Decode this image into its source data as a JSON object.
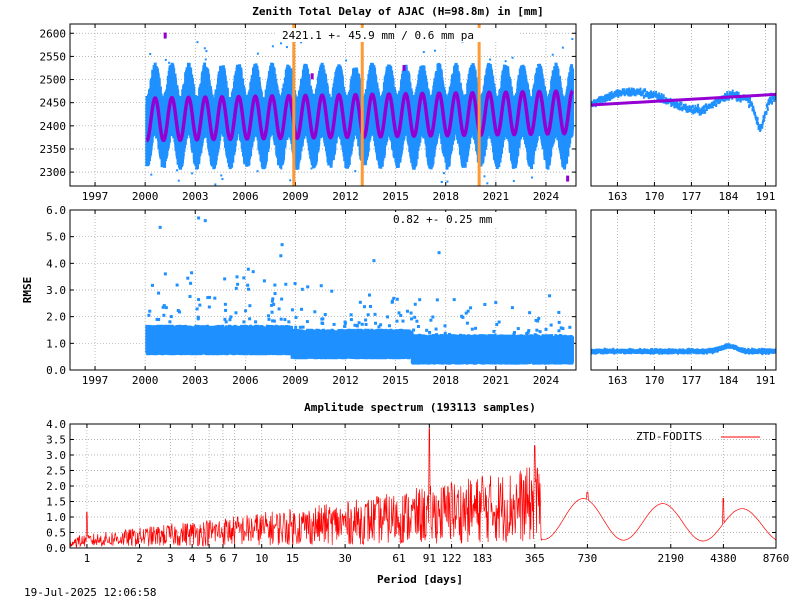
{
  "chart_data": [
    {
      "type": "scatter",
      "title": "Zenith Total Delay of AJAC (H=98.8m) in [mm]",
      "annotation": "2421.1 +-  45.9 mm /  0.6 mm pa",
      "xlim": [
        1995.5,
        2025.8
      ],
      "ylim": [
        2270,
        2620
      ],
      "xticks": [
        "1997",
        "2000",
        "2003",
        "2006",
        "2009",
        "2012",
        "2015",
        "2018",
        "2021",
        "2024"
      ],
      "xtick_values": [
        1997,
        2000,
        2003,
        2006,
        2009,
        2012,
        2015,
        2018,
        2021,
        2024
      ],
      "yticks": [
        "2300",
        "2350",
        "2400",
        "2450",
        "2500",
        "2550",
        "2600"
      ],
      "ytick_values": [
        2300,
        2350,
        2400,
        2450,
        2500,
        2550,
        2600
      ],
      "data_range": [
        2000.1,
        2025.6
      ],
      "mean": 2421.1,
      "seasonal_amplitude": 45.9,
      "trend_mm_pa": 0.6,
      "vertical_markers": [
        2008.9,
        2013.0,
        2020.0
      ],
      "series": [
        {
          "color": "#1e90ff"
        },
        {
          "color": "#9400d3"
        }
      ],
      "marker_color": "#ff9933"
    },
    {
      "type": "scatter",
      "xlim": [
        158,
        193
      ],
      "ylim": [
        2270,
        2620
      ],
      "xticks": [
        "163",
        "170",
        "177",
        "184",
        "191"
      ],
      "xtick_values": [
        163,
        170,
        177,
        184,
        191
      ],
      "series_start": 2445,
      "series_end": 2468
    },
    {
      "type": "scatter",
      "ylabel": "RMSE",
      "annotation": "0.82 +-  0.25 mm",
      "xlim": [
        1995.5,
        2025.8
      ],
      "ylim": [
        0,
        6
      ],
      "xticks": [
        "1997",
        "2000",
        "2003",
        "2006",
        "2009",
        "2012",
        "2015",
        "2018",
        "2021",
        "2024"
      ],
      "xtick_values": [
        1997,
        2000,
        2003,
        2006,
        2009,
        2012,
        2015,
        2018,
        2021,
        2024
      ],
      "yticks": [
        "0.0",
        "1.0",
        "2.0",
        "3.0",
        "4.0",
        "5.0",
        "6.0"
      ],
      "ytick_values": [
        0,
        1,
        2,
        3,
        4,
        5,
        6
      ],
      "mean": 0.82,
      "std": 0.25
    },
    {
      "type": "scatter",
      "xlim": [
        158,
        193
      ],
      "ylim": [
        0,
        6
      ],
      "xticks": [
        "163",
        "170",
        "177",
        "184",
        "191"
      ],
      "xtick_values": [
        163,
        170,
        177,
        184,
        191
      ],
      "level": 0.7
    },
    {
      "type": "line",
      "title": "Amplitude spectrum (193113 samples)",
      "xlabel": "Period [days]",
      "xscale": "log",
      "xlim": [
        0.8,
        8760
      ],
      "ylim": [
        0,
        4
      ],
      "xticks": [
        "1",
        "2",
        "3",
        "4",
        "5",
        "6",
        "7",
        "10",
        "15",
        "30",
        "61",
        "91",
        "122",
        "183",
        "365",
        "730",
        "2190",
        "4380",
        "8760"
      ],
      "xtick_values": [
        1,
        2,
        3,
        4,
        5,
        6,
        7,
        10,
        15,
        30,
        61,
        91,
        122,
        183,
        365,
        730,
        2190,
        4380,
        8760
      ],
      "yticks": [
        "0.0",
        "0.5",
        "1.0",
        "1.5",
        "2.0",
        "2.5",
        "3.0",
        "3.5",
        "4.0"
      ],
      "ytick_values": [
        0,
        0.5,
        1,
        1.5,
        2,
        2.5,
        3,
        3.5,
        4
      ],
      "legend": "ZTD-FODITS",
      "legend_position": "top-right",
      "color": "#ff0000",
      "peaks": [
        {
          "period": 1,
          "amplitude": 1.15
        },
        {
          "period": 91,
          "amplitude": 3.85
        },
        {
          "period": 122,
          "amplitude": 2.1
        },
        {
          "period": 183,
          "amplitude": 2.3
        },
        {
          "period": 365,
          "amplitude": 3.3
        },
        {
          "period": 730,
          "amplitude": 1.8
        },
        {
          "period": 4380,
          "amplitude": 1.6
        }
      ]
    }
  ],
  "footer": {
    "timestamp": "19-Jul-2025 12:06:58"
  }
}
